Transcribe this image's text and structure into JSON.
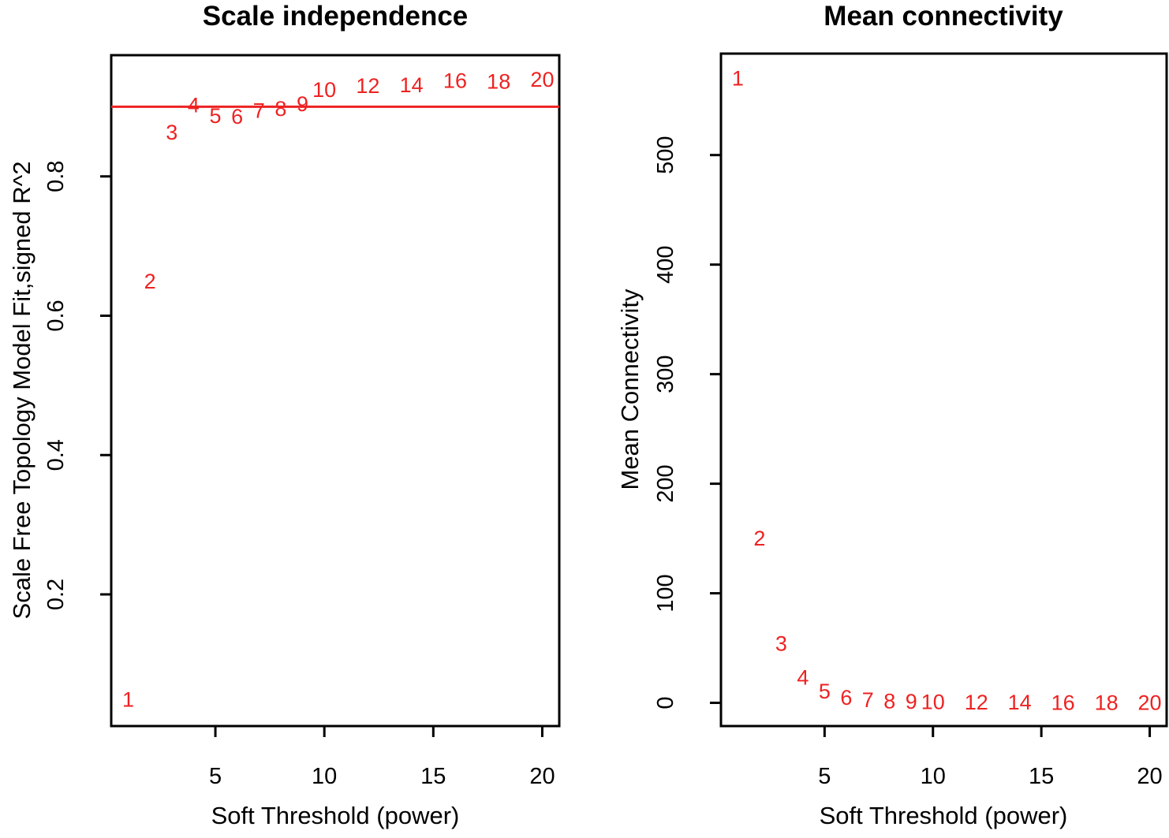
{
  "colors": {
    "background": "#ffffff",
    "axis": "#000000",
    "points": "#ee2222",
    "threshold_line": "#ee2222"
  },
  "chart_data": [
    {
      "type": "scatter",
      "point_style": "text-labels",
      "title": "Scale independence",
      "xlabel": "Soft Threshold (power)",
      "ylabel": "Scale Free Topology Model Fit,signed R^2",
      "x": [
        1,
        2,
        3,
        4,
        5,
        6,
        7,
        8,
        9,
        10,
        12,
        14,
        16,
        18,
        20
      ],
      "labels": [
        "1",
        "2",
        "3",
        "4",
        "5",
        "6",
        "7",
        "8",
        "9",
        "10",
        "12",
        "14",
        "16",
        "18",
        "20"
      ],
      "y": [
        0.049,
        0.649,
        0.863,
        0.902,
        0.887,
        0.886,
        0.894,
        0.897,
        0.904,
        0.924,
        0.93,
        0.931,
        0.937,
        0.936,
        0.939
      ],
      "hline": 0.9,
      "xlim": [
        0.22,
        20.78
      ],
      "ylim": [
        0.011,
        0.974
      ],
      "xticks": [
        5,
        10,
        15,
        20
      ],
      "xtick_labels": [
        "5",
        "10",
        "15",
        "20"
      ],
      "yticks": [
        0.2,
        0.4,
        0.6,
        0.8
      ],
      "ytick_labels": [
        "0.2",
        "0.4",
        "0.6",
        "0.8"
      ],
      "grid": false,
      "legend": null
    },
    {
      "type": "scatter",
      "point_style": "text-labels",
      "title": "Mean connectivity",
      "xlabel": "Soft Threshold (power)",
      "ylabel": "Mean Connectivity",
      "x": [
        1,
        2,
        3,
        4,
        5,
        6,
        7,
        8,
        9,
        10,
        12,
        14,
        16,
        18,
        20
      ],
      "labels": [
        "1",
        "2",
        "3",
        "4",
        "5",
        "6",
        "7",
        "8",
        "9",
        "10",
        "12",
        "14",
        "16",
        "18",
        "20"
      ],
      "y": [
        570,
        150,
        54,
        23,
        10.5,
        4.7,
        2.7,
        1.6,
        1.0,
        0.7,
        0.4,
        0.25,
        0.15,
        0.1,
        0.05
      ],
      "hline": null,
      "xlim": [
        0.22,
        20.78
      ],
      "ylim": [
        -21.2,
        592.6
      ],
      "xticks": [
        5,
        10,
        15,
        20
      ],
      "xtick_labels": [
        "5",
        "10",
        "15",
        "20"
      ],
      "yticks": [
        0,
        100,
        200,
        300,
        400,
        500
      ],
      "ytick_labels": [
        "0",
        "100",
        "200",
        "300",
        "400",
        "500"
      ],
      "grid": false,
      "legend": null
    }
  ]
}
